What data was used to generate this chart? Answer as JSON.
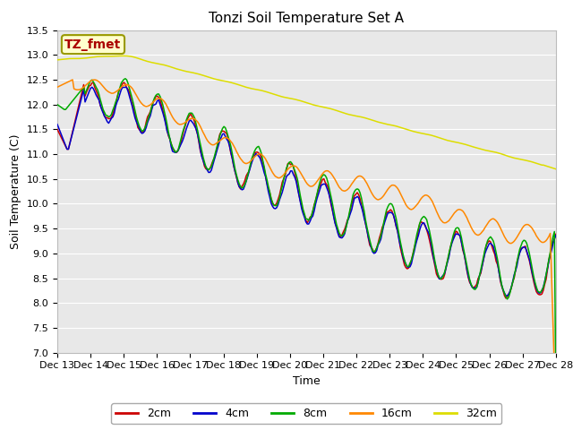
{
  "title": "Tonzi Soil Temperature Set A",
  "xlabel": "Time",
  "ylabel": "Soil Temperature (C)",
  "ylim": [
    7.0,
    13.5
  ],
  "series_labels": [
    "2cm",
    "4cm",
    "8cm",
    "16cm",
    "32cm"
  ],
  "series_colors": [
    "#cc0000",
    "#0000cc",
    "#00aa00",
    "#ff8800",
    "#dddd00"
  ],
  "annotation_text": "TZ_fmet",
  "annotation_color": "#aa0000",
  "annotation_bg": "#ffffcc",
  "annotation_edge": "#999900",
  "background_color": "#e8e8e8",
  "grid_color": "#ffffff",
  "title_fontsize": 11,
  "axis_fontsize": 9,
  "tick_fontsize": 8,
  "legend_fontsize": 9,
  "line_width": 1.1,
  "tick_labels": [
    "Dec 13",
    "Dec 14",
    "Dec 15",
    "Dec 16",
    "Dec 17",
    "Dec 18",
    "Dec 19",
    "Dec 20",
    "Dec 21",
    "Dec 22",
    "Dec 23",
    "Dec 24",
    "Dec 25",
    "Dec 26",
    "Dec 27",
    "Dec 28"
  ]
}
